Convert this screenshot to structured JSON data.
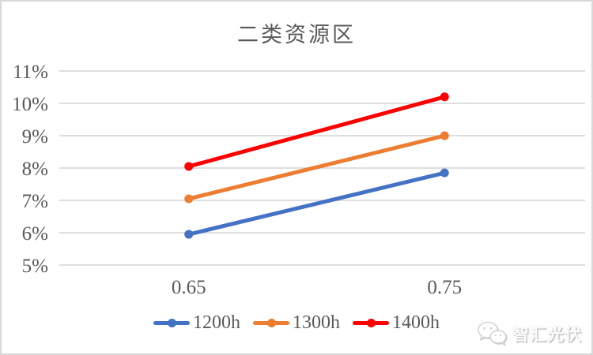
{
  "frame": {
    "background": "#FFFFFF",
    "border_color": "#D9D9D9"
  },
  "chart_data": {
    "type": "line",
    "title": "二类资源区",
    "x_labels": [
      "0.65",
      "0.75"
    ],
    "y_ticks": [
      "5%",
      "6%",
      "7%",
      "8%",
      "9%",
      "10%",
      "11%"
    ],
    "ylim": [
      5,
      11
    ],
    "grid": true,
    "legend_position": "bottom",
    "text_color": "#595959",
    "gridline_color": "#D9D9D9",
    "series": [
      {
        "name": "1200h",
        "color": "#4472C4",
        "values": [
          5.95,
          7.85
        ]
      },
      {
        "name": "1300h",
        "color": "#ED7D31",
        "values": [
          7.05,
          9.0
        ]
      },
      {
        "name": "1400h",
        "color": "#FF0000",
        "values": [
          8.05,
          10.2
        ]
      }
    ]
  },
  "watermark": {
    "text": "智汇光伏",
    "icon": "wechat-icon"
  }
}
